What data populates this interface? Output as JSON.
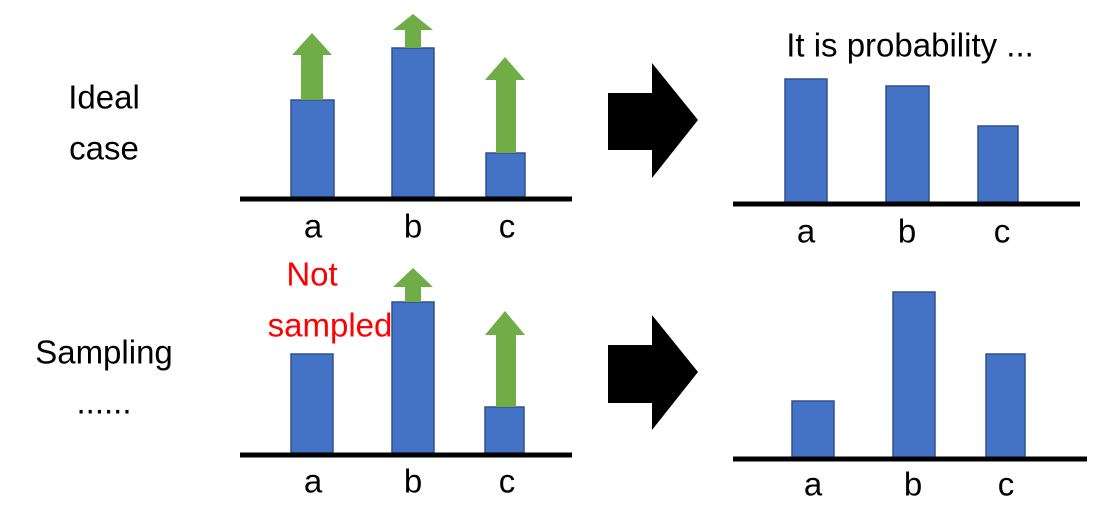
{
  "rows": [
    {
      "label": [
        "Ideal",
        "case"
      ],
      "left": {
        "categories": [
          "a",
          "b",
          "c"
        ]
      },
      "right": {
        "title": "It is probability ...",
        "categories": [
          "a",
          "b",
          "c"
        ]
      }
    },
    {
      "label": [
        "Sampling",
        "......"
      ],
      "left": {
        "annotation": [
          "Not",
          "sampled"
        ],
        "categories": [
          "a",
          "b",
          "c"
        ]
      },
      "right": {
        "categories": [
          "a",
          "b",
          "c"
        ]
      }
    }
  ]
}
